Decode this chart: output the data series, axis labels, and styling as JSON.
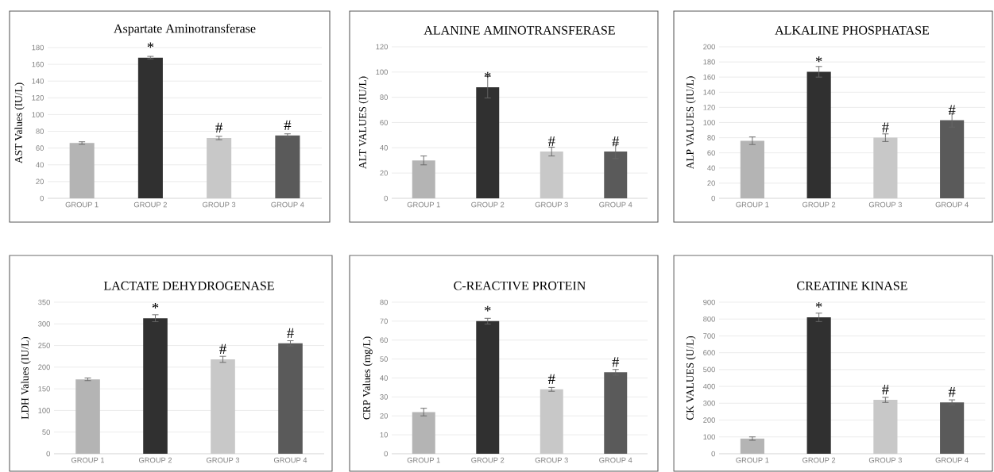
{
  "chart_data": [
    {
      "type": "bar",
      "title": "Aspartate Aminotransferase",
      "ylabel": "AST Values (IU/L)",
      "categories": [
        "GROUP 1",
        "GROUP 2",
        "GROUP 3",
        "GROUP 4"
      ],
      "values": [
        66,
        168,
        72,
        75
      ],
      "errors": [
        1.5,
        1.5,
        2,
        2
      ],
      "colors": [
        "#b4b4b4",
        "#303030",
        "#c8c8c8",
        "#5a5a5a"
      ],
      "ylim": [
        0,
        180
      ],
      "yticks": [
        0,
        20,
        40,
        60,
        80,
        100,
        120,
        140,
        160,
        180
      ],
      "grid": "y",
      "annotations": [
        {
          "text": "*",
          "x": "GROUP 2",
          "y": 168
        },
        {
          "text": "#",
          "x": "GROUP 3",
          "y": 72
        },
        {
          "text": "#",
          "x": "GROUP 4",
          "y": 75
        }
      ]
    },
    {
      "type": "bar",
      "title": "ALANINE AMINOTRANSFERASE",
      "ylabel": "ALT VALUES (IU/L)",
      "categories": [
        "GROUP 1",
        "GROUP 2",
        "GROUP 3",
        "GROUP 4"
      ],
      "values": [
        30,
        88,
        37,
        37
      ],
      "errors": [
        3.5,
        8.5,
        3.5,
        5.5
      ],
      "colors": [
        "#b4b4b4",
        "#303030",
        "#c8c8c8",
        "#5a5a5a"
      ],
      "ylim": [
        0,
        120
      ],
      "yticks": [
        0,
        20,
        40,
        60,
        80,
        100,
        120
      ],
      "grid": "y",
      "annotations": [
        {
          "text": "*",
          "x": "GROUP 2",
          "y": 88
        },
        {
          "text": "#",
          "x": "GROUP 3",
          "y": 37
        },
        {
          "text": "#",
          "x": "GROUP 4",
          "y": 37
        }
      ]
    },
    {
      "type": "bar",
      "title": "ALKALINE PHOSPHATASE",
      "ylabel": "ALP VALUES (IU/L)",
      "categories": [
        "GROUP 1",
        "GROUP 2",
        "GROUP 3",
        "GROUP 4"
      ],
      "values": [
        76,
        167,
        80,
        103
      ],
      "errors": [
        5,
        7,
        5,
        9
      ],
      "colors": [
        "#b4b4b4",
        "#303030",
        "#c8c8c8",
        "#5a5a5a"
      ],
      "ylim": [
        0,
        200
      ],
      "yticks": [
        0,
        20,
        40,
        60,
        80,
        100,
        120,
        140,
        160,
        180,
        200
      ],
      "grid": "y",
      "annotations": [
        {
          "text": "*",
          "x": "GROUP 2",
          "y": 167
        },
        {
          "text": "#",
          "x": "GROUP 3",
          "y": 80
        },
        {
          "text": "#",
          "x": "GROUP 4",
          "y": 103
        }
      ]
    },
    {
      "type": "bar",
      "title": "LACTATE DEHYDROGENASE",
      "ylabel": "LDH Values (IU/L)",
      "categories": [
        "GROUP 1",
        "GROUP 2",
        "GROUP 3",
        "GROUP 4"
      ],
      "values": [
        172,
        313,
        218,
        255
      ],
      "errors": [
        3,
        8,
        7,
        6
      ],
      "colors": [
        "#b4b4b4",
        "#303030",
        "#c8c8c8",
        "#5a5a5a"
      ],
      "ylim": [
        0,
        350
      ],
      "yticks": [
        0,
        50,
        100,
        150,
        200,
        250,
        300,
        350
      ],
      "grid": "y",
      "annotations": [
        {
          "text": "*",
          "x": "GROUP 2",
          "y": 313
        },
        {
          "text": "#",
          "x": "GROUP 3",
          "y": 218
        },
        {
          "text": "#",
          "x": "GROUP 4",
          "y": 255
        }
      ]
    },
    {
      "type": "bar",
      "title": "C-REACTIVE PROTEIN",
      "ylabel": "CRP Values (mg/L)",
      "categories": [
        "GROUP 1",
        "GROUP 2",
        "GROUP 3",
        "GROUP 4"
      ],
      "values": [
        22,
        70,
        34,
        43
      ],
      "errors": [
        2,
        1.5,
        1,
        1.5
      ],
      "colors": [
        "#b4b4b4",
        "#303030",
        "#c8c8c8",
        "#5a5a5a"
      ],
      "ylim": [
        0,
        80
      ],
      "yticks": [
        0,
        10,
        20,
        30,
        40,
        50,
        60,
        70,
        80
      ],
      "grid": "y",
      "annotations": [
        {
          "text": "*",
          "x": "GROUP 2",
          "y": 70
        },
        {
          "text": "#",
          "x": "GROUP 3",
          "y": 34
        },
        {
          "text": "#",
          "x": "GROUP 4",
          "y": 43
        }
      ]
    },
    {
      "type": "bar",
      "title": "CREATINE KINASE",
      "ylabel": "CK VALUES (U/L)",
      "categories": [
        "GROUP 1",
        "GROUP 2",
        "GROUP 3",
        "GROUP 4"
      ],
      "values": [
        90,
        810,
        320,
        305
      ],
      "errors": [
        10,
        25,
        15,
        15
      ],
      "colors": [
        "#b4b4b4",
        "#303030",
        "#c8c8c8",
        "#5a5a5a"
      ],
      "ylim": [
        0,
        900
      ],
      "yticks": [
        0,
        100,
        200,
        300,
        400,
        500,
        600,
        700,
        800,
        900
      ],
      "grid": "y",
      "annotations": [
        {
          "text": "*",
          "x": "GROUP 2",
          "y": 810
        },
        {
          "text": "#",
          "x": "GROUP 3",
          "y": 320
        },
        {
          "text": "#",
          "x": "GROUP 4",
          "y": 305
        }
      ]
    }
  ]
}
